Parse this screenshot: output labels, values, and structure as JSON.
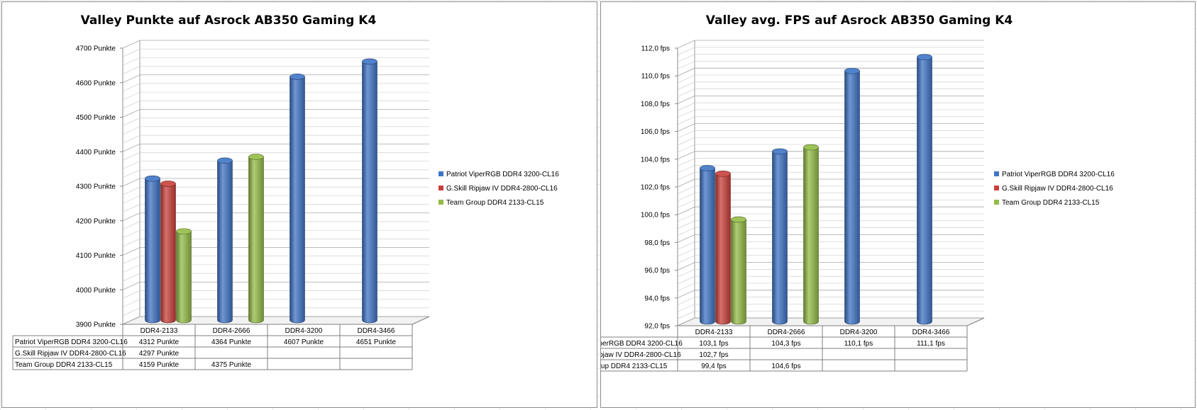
{
  "chart_data": [
    {
      "type": "bar",
      "title": "Valley Punkte auf Asrock AB350  Gaming K4",
      "categories": [
        "DDR4-2133",
        "DDR4-2666",
        "DDR4-3200",
        "DDR4-3466"
      ],
      "series": [
        {
          "name": "Patriot ViperRGB DDR4 3200-CL16",
          "color": "#3f74c6",
          "values": [
            4312,
            4364,
            4607,
            4651
          ],
          "labels": [
            "4312 Punkte",
            "4364 Punkte",
            "4607 Punkte",
            "4651 Punkte"
          ]
        },
        {
          "name": "G.Skill Ripjaw IV DDR4-2800-CL16",
          "color": "#c9403a",
          "values": [
            4297,
            null,
            null,
            null
          ],
          "labels": [
            "4297 Punkte",
            "",
            "",
            ""
          ]
        },
        {
          "name": "Team Group DDR4 2133-CL15",
          "color": "#93bc45",
          "values": [
            4159,
            4375,
            null,
            null
          ],
          "labels": [
            "4159 Punkte",
            "4375 Punkte",
            "",
            ""
          ]
        }
      ],
      "ylim": [
        3900,
        4700
      ],
      "yticks": [
        3900,
        4000,
        4100,
        4200,
        4300,
        4400,
        4500,
        4600,
        4700
      ],
      "ytick_labels": [
        "3900 Punkte",
        "4000 Punkte",
        "4100 Punkte",
        "4200 Punkte",
        "4300 Punkte",
        "4400 Punkte",
        "4500 Punkte",
        "4600 Punkte",
        "4700 Punkte"
      ],
      "legend": "right",
      "grid": true
    },
    {
      "type": "bar",
      "title": "Valley avg. FPS auf Asrock AB350  Gaming K4",
      "categories": [
        "DDR4-2133",
        "DDR4-2666",
        "DDR4-3200",
        "DDR4-3466"
      ],
      "series": [
        {
          "name": "Patriot ViperRGB DDR4 3200-CL16",
          "color": "#3f74c6",
          "values": [
            103.1,
            104.3,
            110.1,
            111.1
          ],
          "labels": [
            "103,1 fps",
            "104,3 fps",
            "110,1 fps",
            "111,1 fps"
          ]
        },
        {
          "name": "G.Skill Ripjaw IV DDR4-2800-CL16",
          "color": "#c9403a",
          "values": [
            102.7,
            null,
            null,
            null
          ],
          "labels": [
            "102,7 fps",
            "",
            "",
            ""
          ]
        },
        {
          "name": "Team Group DDR4 2133-CL15",
          "color": "#93bc45",
          "values": [
            99.4,
            104.6,
            null,
            null
          ],
          "labels": [
            "99,4 fps",
            "104,6 fps",
            "",
            ""
          ]
        }
      ],
      "ylim": [
        92,
        112
      ],
      "yticks": [
        92,
        94,
        96,
        98,
        100,
        102,
        104,
        106,
        108,
        110,
        112
      ],
      "ytick_labels": [
        "92,0 fps",
        "94,0 fps",
        "96,0 fps",
        "98,0 fps",
        "100,0 fps",
        "102,0 fps",
        "104,0 fps",
        "106,0 fps",
        "108,0 fps",
        "110,0 fps",
        "112,0 fps"
      ],
      "legend": "right",
      "grid": true
    }
  ]
}
